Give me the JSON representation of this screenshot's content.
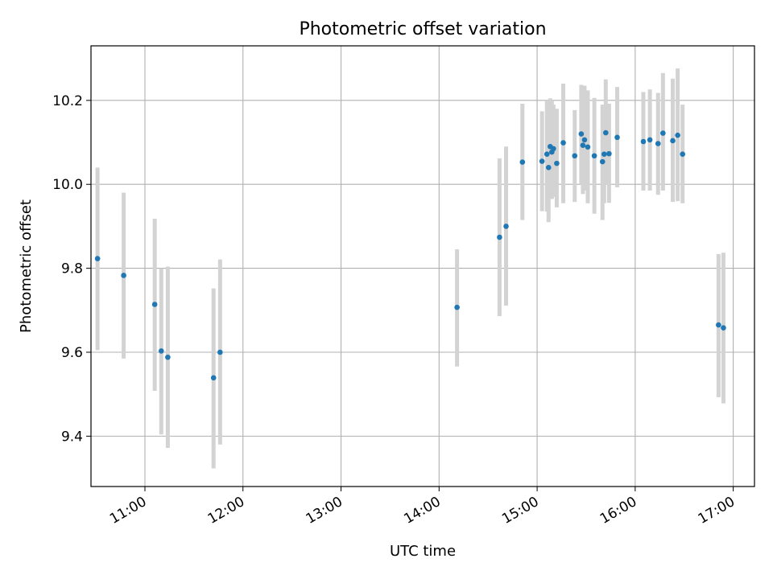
{
  "chart_data": {
    "type": "scatter",
    "title": "Photometric offset variation",
    "xlabel": "UTC time",
    "ylabel": "Photometric offset",
    "grid": true,
    "xlim": [
      "10:27",
      "17:13"
    ],
    "ylim": [
      9.28,
      10.33
    ],
    "x_ticks": [
      "11:00",
      "12:00",
      "13:00",
      "14:00",
      "15:00",
      "16:00",
      "17:00"
    ],
    "y_ticks": [
      "9.4",
      "9.6",
      "9.8",
      "10.0",
      "10.2"
    ],
    "point_color": "#1f77b4",
    "errorbar_color": "#d3d3d3",
    "points": [
      {
        "time": "10:31",
        "y": 9.823,
        "lo": 9.605,
        "hi": 10.04
      },
      {
        "time": "10:47",
        "y": 9.783,
        "lo": 9.585,
        "hi": 9.98
      },
      {
        "time": "11:06",
        "y": 9.714,
        "lo": 9.508,
        "hi": 9.918
      },
      {
        "time": "11:10",
        "y": 9.603,
        "lo": 9.404,
        "hi": 9.8
      },
      {
        "time": "11:14",
        "y": 9.588,
        "lo": 9.372,
        "hi": 9.804
      },
      {
        "time": "11:42",
        "y": 9.539,
        "lo": 9.323,
        "hi": 9.752
      },
      {
        "time": "11:46",
        "y": 9.6,
        "lo": 9.38,
        "hi": 9.821
      },
      {
        "time": "14:11",
        "y": 9.707,
        "lo": 9.566,
        "hi": 9.845
      },
      {
        "time": "14:37",
        "y": 9.874,
        "lo": 9.686,
        "hi": 10.062
      },
      {
        "time": "14:41",
        "y": 9.9,
        "lo": 9.711,
        "hi": 10.09
      },
      {
        "time": "14:51",
        "y": 10.053,
        "lo": 9.915,
        "hi": 10.192
      },
      {
        "time": "15:03",
        "y": 10.055,
        "lo": 9.936,
        "hi": 10.174
      },
      {
        "time": "15:06",
        "y": 10.072,
        "lo": 9.935,
        "hi": 10.2
      },
      {
        "time": "15:07",
        "y": 10.04,
        "lo": 9.91,
        "hi": 10.18
      },
      {
        "time": "15:08",
        "y": 10.09,
        "lo": 9.975,
        "hi": 10.205
      },
      {
        "time": "15:09",
        "y": 10.077,
        "lo": 9.965,
        "hi": 10.2
      },
      {
        "time": "15:10",
        "y": 10.085,
        "lo": 9.97,
        "hi": 10.19
      },
      {
        "time": "15:12",
        "y": 10.05,
        "lo": 9.945,
        "hi": 10.18
      },
      {
        "time": "15:16",
        "y": 10.099,
        "lo": 9.955,
        "hi": 10.24
      },
      {
        "time": "15:23",
        "y": 10.068,
        "lo": 9.958,
        "hi": 10.177
      },
      {
        "time": "15:27",
        "y": 10.12,
        "lo": 10.0,
        "hi": 10.237
      },
      {
        "time": "15:28",
        "y": 10.093,
        "lo": 9.977,
        "hi": 10.21
      },
      {
        "time": "15:29",
        "y": 10.106,
        "lo": 9.985,
        "hi": 10.235
      },
      {
        "time": "15:31",
        "y": 10.089,
        "lo": 9.955,
        "hi": 10.224
      },
      {
        "time": "15:35",
        "y": 10.068,
        "lo": 9.93,
        "hi": 10.206
      },
      {
        "time": "15:40",
        "y": 10.054,
        "lo": 9.915,
        "hi": 10.19
      },
      {
        "time": "15:41",
        "y": 10.072,
        "lo": 9.955,
        "hi": 10.188
      },
      {
        "time": "15:42",
        "y": 10.123,
        "lo": 10.0,
        "hi": 10.25
      },
      {
        "time": "15:44",
        "y": 10.073,
        "lo": 9.956,
        "hi": 10.192
      },
      {
        "time": "15:49",
        "y": 10.112,
        "lo": 9.993,
        "hi": 10.232
      },
      {
        "time": "16:05",
        "y": 10.102,
        "lo": 9.985,
        "hi": 10.22
      },
      {
        "time": "16:09",
        "y": 10.106,
        "lo": 9.985,
        "hi": 10.226
      },
      {
        "time": "16:14",
        "y": 10.097,
        "lo": 9.975,
        "hi": 10.218
      },
      {
        "time": "16:17",
        "y": 10.122,
        "lo": 9.985,
        "hi": 10.265
      },
      {
        "time": "16:23",
        "y": 10.104,
        "lo": 9.958,
        "hi": 10.252
      },
      {
        "time": "16:26",
        "y": 10.117,
        "lo": 9.96,
        "hi": 10.276
      },
      {
        "time": "16:29",
        "y": 10.072,
        "lo": 9.955,
        "hi": 10.19
      },
      {
        "time": "16:51",
        "y": 9.665,
        "lo": 9.493,
        "hi": 9.834
      },
      {
        "time": "16:54",
        "y": 9.658,
        "lo": 9.478,
        "hi": 9.837
      }
    ]
  }
}
